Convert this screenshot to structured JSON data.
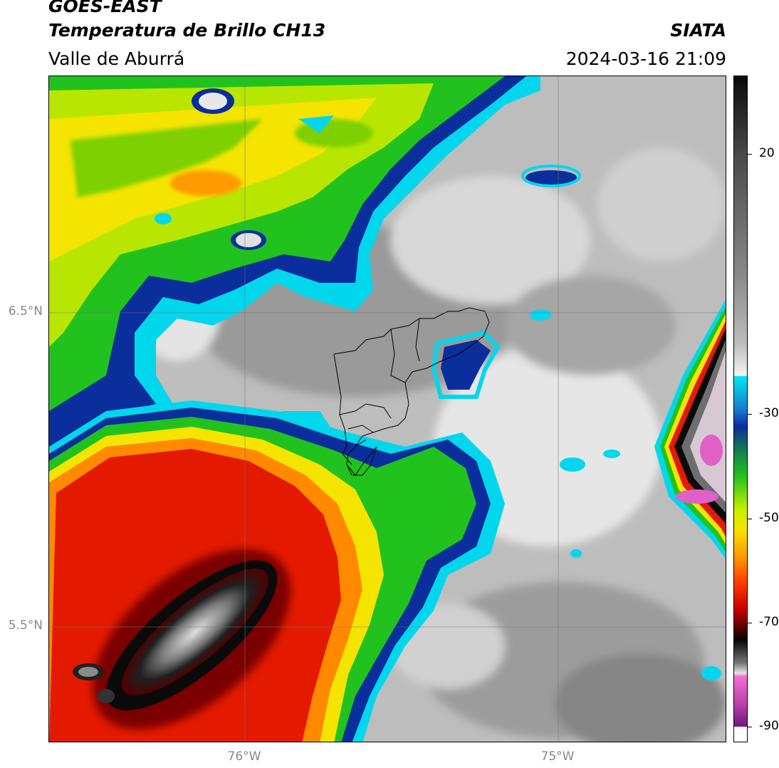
{
  "header": {
    "satellite": "GOES-EAST",
    "product": "Temperatura de Brillo CH13",
    "region": "Valle de Aburrá",
    "agency": "SIATA",
    "datetime": "2024-03-16 21:09"
  },
  "map": {
    "lat_labels": [
      "6.5°N",
      "5.5°N"
    ],
    "lon_labels": [
      "76°W",
      "75°W"
    ],
    "gridlines": true
  },
  "colorbar": {
    "tick_labels": [
      "20",
      "-30",
      "-50",
      "-70",
      "-90"
    ],
    "tick_values": [
      20,
      -30,
      -50,
      -70,
      -90
    ],
    "range": [
      -93,
      35
    ],
    "colors": {
      "warm": "#a8a8a8",
      "cyan": "#00d7ec",
      "blue": "#0a2e9c",
      "green": "#22c21e",
      "yellow": "#f4e400",
      "orange": "#ff8a00",
      "red": "#e41a00",
      "darkred": "#7a0000",
      "black": "#0a0a0a",
      "pink": "#e060c8",
      "purple": "#7a1a80"
    }
  }
}
